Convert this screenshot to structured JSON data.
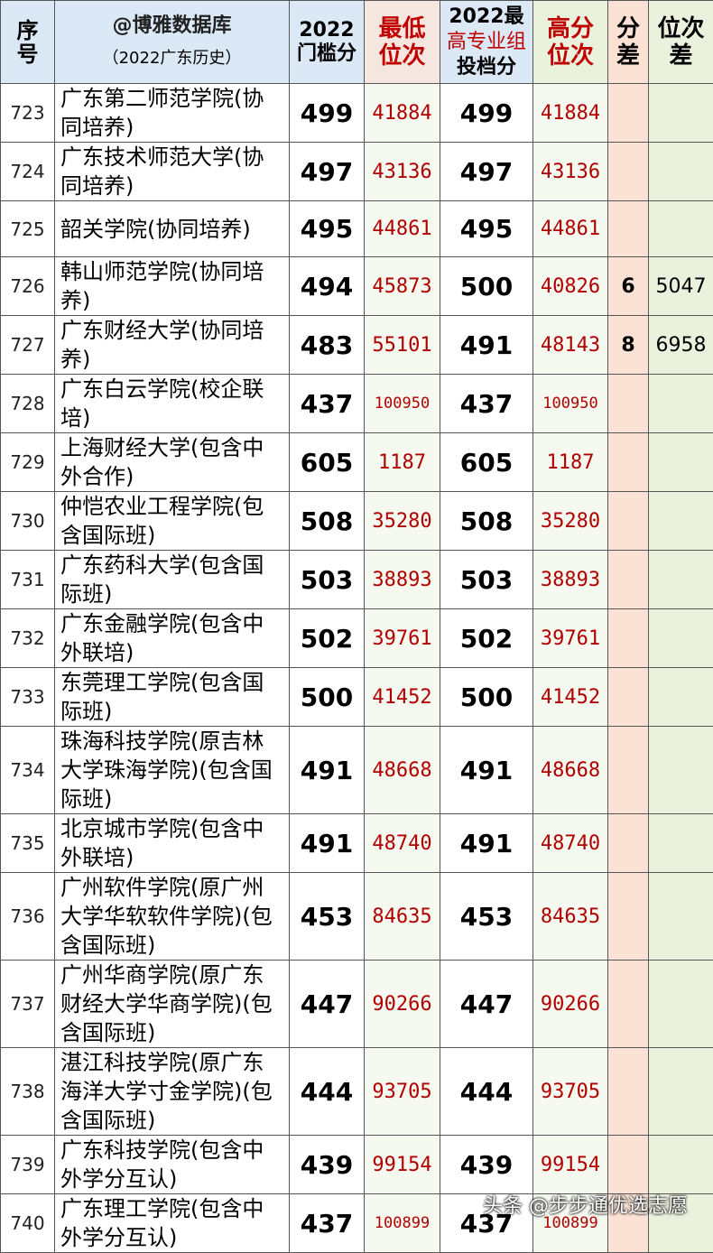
{
  "header": {
    "id": "序号",
    "source": "@博雅数据库",
    "subtitle": "（2022广东历史）",
    "min_score": "2022门槛分",
    "min_rank": "最低位次",
    "max_score_a": "2022最",
    "max_score_b": "高专业组",
    "max_score_c": "投档分",
    "max_rank": "高分位次",
    "score_diff": "分差",
    "rank_diff": "位次差"
  },
  "table": {
    "rows": [
      [
        "723",
        "广东第二师范学院(协同培养)",
        "499",
        "41884",
        "499",
        "41884",
        null,
        null
      ],
      [
        "724",
        "广东技术师范大学(协同培养)",
        "497",
        "43136",
        "497",
        "43136",
        null,
        null
      ],
      [
        "725",
        "韶关学院(协同培养)",
        "495",
        "44861",
        "495",
        "44861",
        null,
        null
      ],
      [
        "726",
        "韩山师范学院(协同培养)",
        "494",
        "45873",
        "500",
        "40826",
        "6",
        "5047"
      ],
      [
        "727",
        "广东财经大学(协同培养)",
        "483",
        "55101",
        "491",
        "48143",
        "8",
        "6958"
      ],
      [
        "728",
        "广东白云学院(校企联培)",
        "437",
        "100950",
        "437",
        "100950",
        null,
        null
      ],
      [
        "729",
        "上海财经大学(包含中外合作)",
        "605",
        "1187",
        "605",
        "1187",
        null,
        null
      ],
      [
        "730",
        "仲恺农业工程学院(包含国际班)",
        "508",
        "35280",
        "508",
        "35280",
        null,
        null
      ],
      [
        "731",
        "广东药科大学(包含国际班)",
        "503",
        "38893",
        "503",
        "38893",
        null,
        null
      ],
      [
        "732",
        "广东金融学院(包含中外联培)",
        "502",
        "39761",
        "502",
        "39761",
        null,
        null
      ],
      [
        "733",
        "东莞理工学院(包含国际班)",
        "500",
        "41452",
        "500",
        "41452",
        null,
        null
      ],
      [
        "734",
        "珠海科技学院(原吉林大学珠海学院)(包含国际班)",
        "491",
        "48668",
        "491",
        "48668",
        null,
        null
      ],
      [
        "735",
        "北京城市学院(包含中外联培)",
        "491",
        "48740",
        "491",
        "48740",
        null,
        null
      ],
      [
        "736",
        "广州软件学院(原广州大学华软软件学院)(包含国际班)",
        "453",
        "84635",
        "453",
        "84635",
        null,
        null
      ],
      [
        "737",
        "广州华商学院(原广东财经大学华商学院)(包含国际班)",
        "447",
        "90266",
        "447",
        "90266",
        null,
        null
      ],
      [
        "738",
        "湛江科技学院(原广东海洋大学寸金学院)(包含国际班)",
        "444",
        "93705",
        "444",
        "93705",
        null,
        null
      ],
      [
        "739",
        "广东科技学院(包含中外学分互认)",
        "439",
        "99154",
        "439",
        "99154",
        null,
        null
      ],
      [
        "740",
        "广东理工学院(包含中外学分互认)",
        "437",
        "100899",
        "437",
        "100899",
        null,
        null
      ]
    ]
  },
  "watermark": "头条 @步步通优选志愿"
}
